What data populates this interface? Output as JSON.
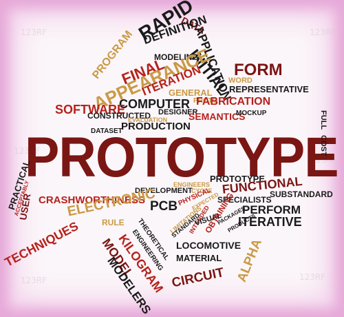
{
  "colors": {
    "maroon": "#7a1614",
    "red": "#b5221c",
    "gold": "#c99a45",
    "black": "#1a1a1a",
    "border": "#e6a8d8"
  },
  "watermark_text": "123RF",
  "words": {
    "prototype": "PROTOTYPE",
    "rapid": "RAPID",
    "data": "DATA",
    "definition": "DEFINITION",
    "application": "APPLICATION",
    "program": "PROGRAM",
    "final": "FINAL",
    "modeling": "MODELING",
    "initial": "INITIAL",
    "appearance": "APPEARANCE",
    "iteration": "ITERATION",
    "form": "FORM",
    "word": "WORD",
    "general": "GENERAL",
    "computer": "COMPUTER",
    "proto": "PROTO",
    "representative": "REPRESENTATIVE",
    "software": "SOFTWARE",
    "fabrication": "FABRICATION",
    "constructed": "CONSTRUCTED",
    "designer": "DESIGNER",
    "evaluation": "EVALUATION",
    "semantics": "SEMANTICS",
    "mockup": "MOCKUP",
    "production": "PRODUCTION",
    "dataset": "DATASET",
    "full": "FULL",
    "cost": "COST",
    "practical": "PRACTICAL",
    "acceptably": "ACCEPTABLY",
    "user": "USER",
    "engineers": "ENGINEERS",
    "prototype_small": "PROTOTYPE",
    "development": "DEVELOPMENT",
    "cycle": "CYCLE",
    "functional": "FUNCTIONAL",
    "crashworthiness": "CRASHWORTHINESS",
    "electronic": "ELECTRONIC",
    "pcb": "PCB",
    "physical": "PHYSICAL",
    "expected": "EXPECTED",
    "specialists": "SPECIALISTS",
    "substandard": "SUBSTANDARD",
    "perform": "PERFORM",
    "rule": "RULE",
    "intended": "INTENDED",
    "packages": "PACKAGES",
    "obtaining": "OBTAINING",
    "visual": "VISUAL",
    "limitations": "LIMITATIONS",
    "iterative": "ITERATIVE",
    "techniques": "TECHNIQUES",
    "theoretical": "THEORETICAL",
    "engineering": "ENGINEERING",
    "standard": "STANDARD",
    "kilogram": "KILOGRAM",
    "model": "MODEL",
    "locomotive": "LOCOMOTIVE",
    "alpha": "ALPHA",
    "material": "MATERIAL",
    "modelers": "MODELERS",
    "circuit": "CIRCUIT",
    "products": "PRODUCTS"
  }
}
